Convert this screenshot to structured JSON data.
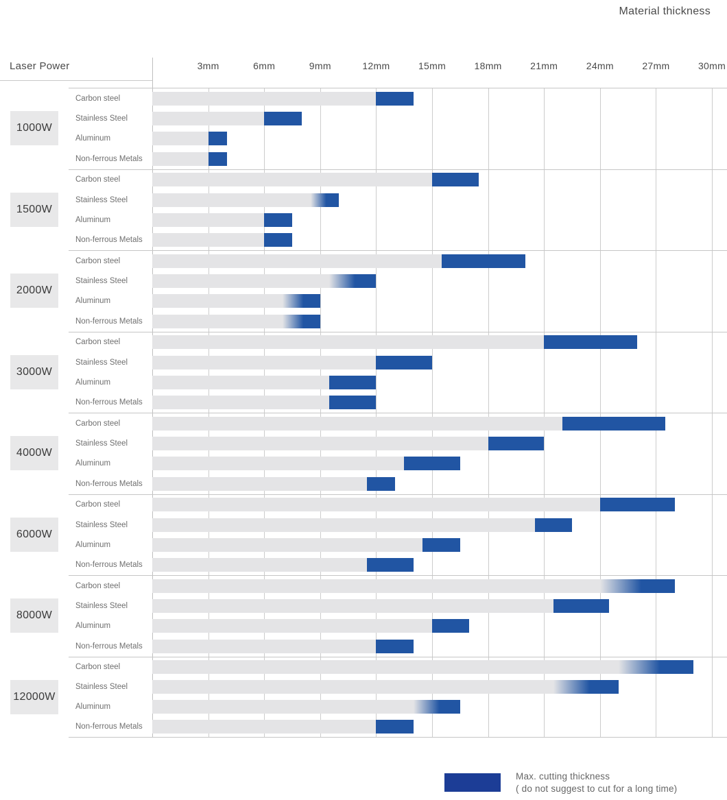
{
  "title": "Material thickness",
  "axis": {
    "left_label": "Laser Power",
    "tick_unit": "mm",
    "max_mm": 30
  },
  "legend": {
    "line1": "Max. cutting thickness",
    "line2": "( do not suggest to cut for a long time)"
  },
  "colors": {
    "bar_blue": "#2155a3",
    "track_gray": "#e4e4e6",
    "legend_blue": "#1c3d96",
    "grid": "#cccccc"
  },
  "chart_data": {
    "type": "bar",
    "orientation": "horizontal",
    "title": "Material thickness",
    "xlabel": "Material thickness (mm)",
    "ylabel": "Laser Power",
    "xlim": [
      0,
      30
    ],
    "x_ticks_mm": [
      3,
      6,
      9,
      12,
      15,
      18,
      21,
      24,
      27,
      30
    ],
    "grid": true,
    "legend_position": "bottom-right",
    "note": "Gray bar = suggested cutting range from 0; blue segment = max. cutting thickness range (not suggested for long-time cutting); fade = blue segment blends gradually out of the gray bar.",
    "groups": [
      {
        "power": "1000W",
        "rows": [
          {
            "material": "Carbon steel",
            "suggested_max_mm": 12,
            "max_mm": 14,
            "fade": false
          },
          {
            "material": "Stainless Steel",
            "suggested_max_mm": 6,
            "max_mm": 8,
            "fade": false
          },
          {
            "material": "Aluminum",
            "suggested_max_mm": 3,
            "max_mm": 4,
            "fade": false
          },
          {
            "material": "Non-ferrous Metals",
            "suggested_max_mm": 3,
            "max_mm": 4,
            "fade": false
          }
        ]
      },
      {
        "power": "1500W",
        "rows": [
          {
            "material": "Carbon steel",
            "suggested_max_mm": 15,
            "max_mm": 17.5,
            "fade": false
          },
          {
            "material": "Stainless Steel",
            "suggested_max_mm": 8.5,
            "max_mm": 10,
            "fade": true
          },
          {
            "material": "Aluminum",
            "suggested_max_mm": 6,
            "max_mm": 7.5,
            "fade": false
          },
          {
            "material": "Non-ferrous Metals",
            "suggested_max_mm": 6,
            "max_mm": 7.5,
            "fade": false
          }
        ]
      },
      {
        "power": "2000W",
        "rows": [
          {
            "material": "Carbon steel",
            "suggested_max_mm": 15.5,
            "max_mm": 20,
            "fade": false
          },
          {
            "material": "Stainless Steel",
            "suggested_max_mm": 9.5,
            "max_mm": 12,
            "fade": true
          },
          {
            "material": "Aluminum",
            "suggested_max_mm": 7,
            "max_mm": 9,
            "fade": true
          },
          {
            "material": "Non-ferrous Metals",
            "suggested_max_mm": 7,
            "max_mm": 9,
            "fade": true
          }
        ]
      },
      {
        "power": "3000W",
        "rows": [
          {
            "material": "Carbon steel",
            "suggested_max_mm": 21,
            "max_mm": 26,
            "fade": false
          },
          {
            "material": "Stainless Steel",
            "suggested_max_mm": 12,
            "max_mm": 15,
            "fade": false
          },
          {
            "material": "Aluminum",
            "suggested_max_mm": 9.5,
            "max_mm": 12,
            "fade": false
          },
          {
            "material": "Non-ferrous Metals",
            "suggested_max_mm": 9.5,
            "max_mm": 12,
            "fade": false
          }
        ]
      },
      {
        "power": "4000W",
        "rows": [
          {
            "material": "Carbon steel",
            "suggested_max_mm": 22,
            "max_mm": 27.5,
            "fade": false
          },
          {
            "material": "Stainless Steel",
            "suggested_max_mm": 18,
            "max_mm": 21,
            "fade": false
          },
          {
            "material": "Aluminum",
            "suggested_max_mm": 13.5,
            "max_mm": 16.5,
            "fade": false
          },
          {
            "material": "Non-ferrous Metals",
            "suggested_max_mm": 11.5,
            "max_mm": 13,
            "fade": false
          }
        ]
      },
      {
        "power": "6000W",
        "rows": [
          {
            "material": "Carbon steel",
            "suggested_max_mm": 24,
            "max_mm": 28,
            "fade": false
          },
          {
            "material": "Stainless Steel",
            "suggested_max_mm": 20.5,
            "max_mm": 22.5,
            "fade": false
          },
          {
            "material": "Aluminum",
            "suggested_max_mm": 14.5,
            "max_mm": 16.5,
            "fade": false
          },
          {
            "material": "Non-ferrous Metals",
            "suggested_max_mm": 11.5,
            "max_mm": 14,
            "fade": false
          }
        ]
      },
      {
        "power": "8000W",
        "rows": [
          {
            "material": "Carbon steel",
            "suggested_max_mm": 24,
            "max_mm": 28,
            "fade": true
          },
          {
            "material": "Stainless Steel",
            "suggested_max_mm": 21.5,
            "max_mm": 24.5,
            "fade": false
          },
          {
            "material": "Aluminum",
            "suggested_max_mm": 15,
            "max_mm": 17,
            "fade": false
          },
          {
            "material": "Non-ferrous Metals",
            "suggested_max_mm": 12,
            "max_mm": 14,
            "fade": false
          }
        ]
      },
      {
        "power": "12000W",
        "rows": [
          {
            "material": "Carbon steel",
            "suggested_max_mm": 25,
            "max_mm": 29,
            "fade": true
          },
          {
            "material": "Stainless Steel",
            "suggested_max_mm": 21.5,
            "max_mm": 25,
            "fade": true
          },
          {
            "material": "Aluminum",
            "suggested_max_mm": 14,
            "max_mm": 16.5,
            "fade": true
          },
          {
            "material": "Non-ferrous Metals",
            "suggested_max_mm": 12,
            "max_mm": 14,
            "fade": false
          }
        ]
      }
    ]
  }
}
